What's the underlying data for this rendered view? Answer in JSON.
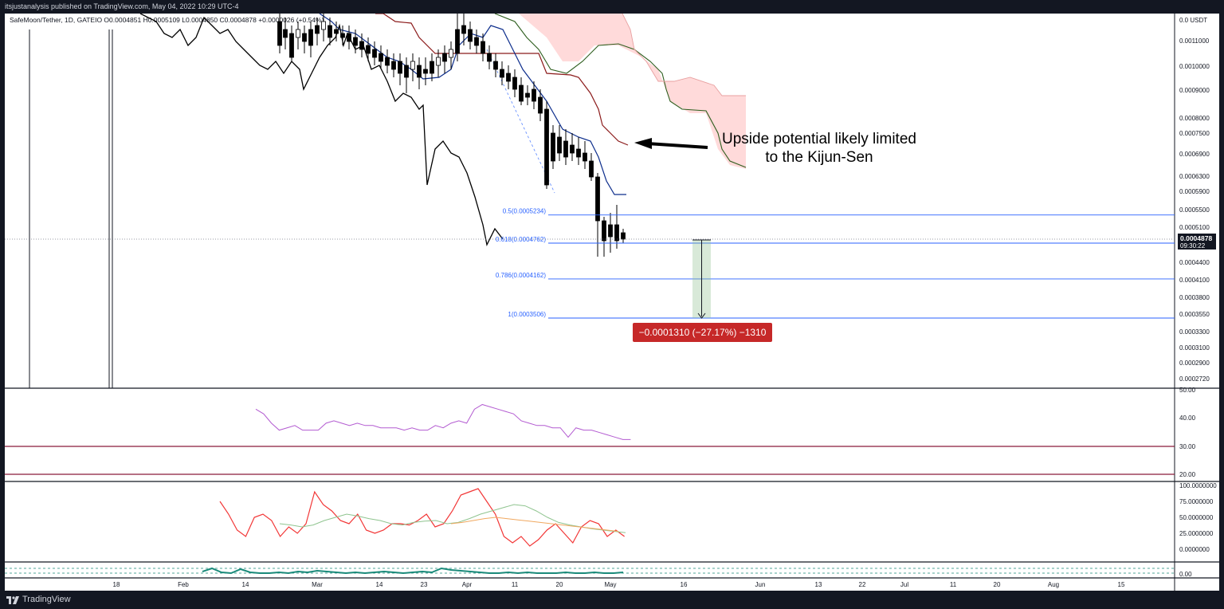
{
  "header": {
    "published": "itsjustanalysis published on TradingView.com, May 04, 2022 10:29 UTC-4",
    "symbol_line": "SafeMoon/Tether, 1D, GATEIO  O0.0004851  H0.0005109  L0.0004850  C0.0004878  +0.0000026 (+0.54%)"
  },
  "footer": {
    "brand": "TradingView"
  },
  "colors": {
    "background": "#ffffff",
    "frame": "#131722",
    "candle": "#000000",
    "tenkan": "#0d2e8c",
    "kijun": "#8b1a1a",
    "cloud_bear": "#ffd6d6",
    "span_b": "#2e5e1e",
    "fib": "#2962ff",
    "rsi": "#b35bd1",
    "stoch_k": "#f23636",
    "stoch_d": "#8fc48f",
    "osc": "#1a8a7a",
    "badge": "#c62828"
  },
  "annotation": {
    "line1": "Upside potential likely limited",
    "line2": "to the Kijun-Sen"
  },
  "measure_badge": "−0.0001310 (−27.17%) −1310",
  "price_badge": {
    "value": "0.0004878",
    "time": "09:30:22"
  },
  "chart_data": [
    {
      "type": "candlestick",
      "title": "SafeMoon/Tether, 1D, GATEIO",
      "currency": "USDT",
      "y_axis_ticks": [
        "0.0 USDT",
        "0.0011000",
        "0.0010000",
        "0.0009000",
        "0.0008000",
        "0.0007500",
        "0.0006900",
        "0.0006300",
        "0.0005900",
        "0.0005500",
        "0.0005100",
        "0.0004400",
        "0.0004100",
        "0.0003800",
        "0.0003550",
        "0.0003300",
        "0.0003100",
        "0.0002900",
        "0.0002720"
      ],
      "x_axis_ticks": [
        "18",
        "Feb",
        "14",
        "Mar",
        "14",
        "23",
        "Apr",
        "11",
        "20",
        "May",
        "16",
        "Jun",
        "13",
        "22",
        "Jul",
        "11",
        "20",
        "Aug",
        "15"
      ],
      "last_price": 0.0004878,
      "fib_levels": [
        {
          "label": "0.5(0.0005234)",
          "ratio": 0.5,
          "value": 0.0005234
        },
        {
          "label": "0.618(0.0004762)",
          "ratio": 0.618,
          "value": 0.0004762
        },
        {
          "label": "0.786(0.0004162)",
          "ratio": 0.786,
          "value": 0.0004162
        },
        {
          "label": "1(0.0003506)",
          "ratio": 1,
          "value": 0.0003506
        }
      ],
      "measure": {
        "from": 0.0004878,
        "to": 0.0003506,
        "change": -0.000131,
        "percent": -27.17,
        "ticks": -1310
      }
    },
    {
      "type": "line",
      "panel": "RSI",
      "y_ticks": [
        "50.00",
        "40.00",
        "30.00",
        "20.00"
      ],
      "levels": [
        30,
        20
      ],
      "values": [
        46,
        44,
        40,
        37,
        38,
        39,
        37,
        37,
        37,
        40,
        41,
        40,
        39,
        40,
        39,
        39,
        38,
        38,
        38,
        37,
        38,
        37,
        37,
        39,
        38,
        40,
        41,
        40,
        46,
        48,
        47,
        46,
        45,
        44,
        41,
        40,
        39,
        39,
        38,
        38,
        34,
        38,
        37,
        37,
        36,
        35,
        34,
        33,
        33
      ]
    },
    {
      "type": "line",
      "panel": "Stochastic RSI",
      "y_ticks": [
        "100.0000000",
        "75.0000000",
        "50.0000000",
        "25.0000000",
        "0.0000000"
      ],
      "series": [
        {
          "name": "K",
          "values": [
            75,
            55,
            30,
            20,
            50,
            55,
            45,
            20,
            35,
            25,
            40,
            90,
            70,
            60,
            45,
            40,
            55,
            30,
            25,
            30,
            40,
            40,
            38,
            45,
            55,
            35,
            40,
            60,
            85,
            90,
            95,
            75,
            55,
            20,
            10,
            20,
            5,
            15,
            30,
            40,
            25,
            10,
            35,
            45,
            40,
            20,
            30,
            20
          ]
        },
        {
          "name": "D",
          "values": [
            40,
            38,
            35,
            38,
            45,
            50,
            55,
            52,
            48,
            45,
            40,
            38,
            42,
            44,
            45,
            40,
            42,
            48,
            55,
            60,
            65,
            70,
            68,
            60,
            50,
            42,
            38,
            35,
            32,
            30,
            28,
            26
          ]
        },
        {
          "name": "D2",
          "values": [
            40,
            42,
            45,
            48,
            50,
            48,
            46,
            44,
            42,
            40,
            38,
            36,
            34,
            32,
            30,
            28
          ]
        }
      ]
    },
    {
      "type": "line",
      "panel": "Oscillator",
      "y_ticks": [
        "0.00"
      ],
      "values": [
        2,
        6,
        1,
        0,
        5,
        1,
        0,
        0,
        1,
        0,
        2,
        1,
        3,
        2,
        1,
        0,
        1,
        0,
        1,
        2,
        1,
        0,
        1,
        2,
        1,
        6,
        4,
        3,
        2,
        1,
        0,
        0,
        1,
        0,
        1,
        0,
        0,
        0,
        1,
        0,
        0,
        1,
        0,
        0,
        1
      ]
    }
  ]
}
